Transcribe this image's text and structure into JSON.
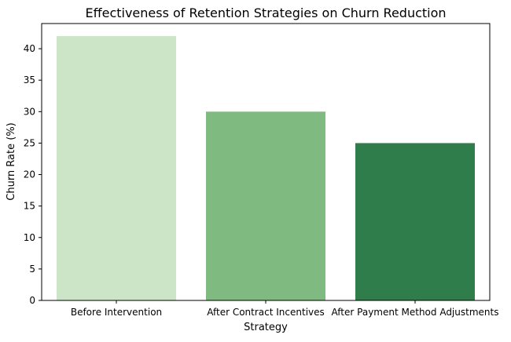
{
  "chart_data": {
    "type": "bar",
    "title": "Effectiveness of Retention Strategies on Churn Reduction",
    "xlabel": "Strategy",
    "ylabel": "Churn Rate (%)",
    "categories": [
      "Before Intervention",
      "After Contract Incentives",
      "After Payment Method Adjustments"
    ],
    "values": [
      42,
      30,
      25
    ],
    "colors": [
      "#cce5c7",
      "#7fba80",
      "#2e7d4a"
    ],
    "ylim": [
      0,
      44
    ],
    "yticks": [
      0,
      5,
      10,
      15,
      20,
      25,
      30,
      35,
      40
    ],
    "grid": false,
    "legend": "none"
  }
}
